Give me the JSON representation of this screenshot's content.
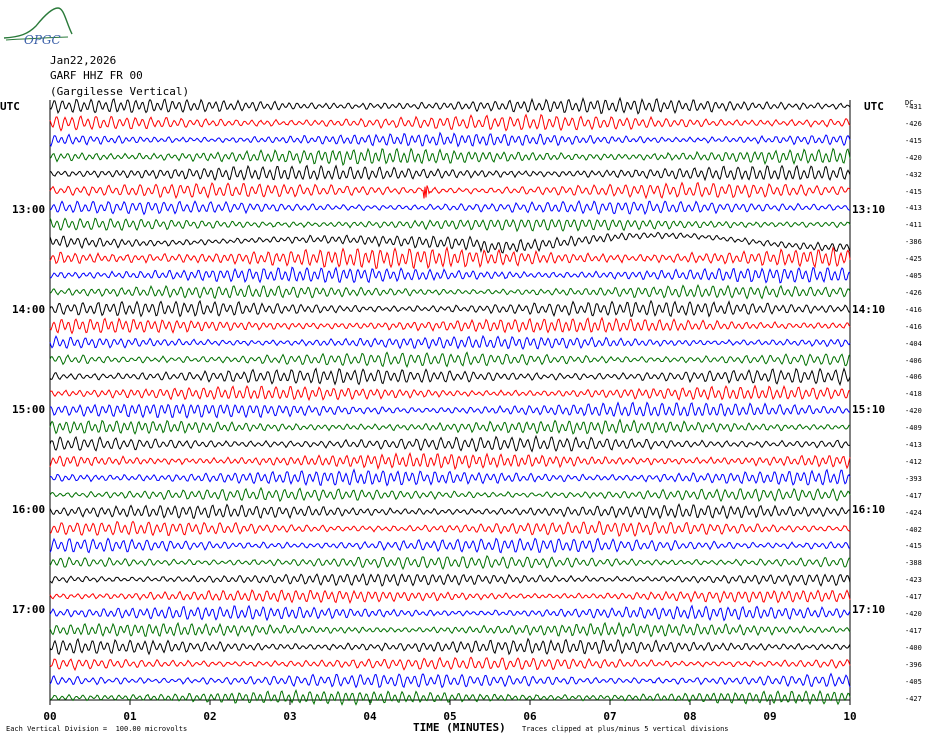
{
  "header": {
    "date": "Jan22,2026",
    "station": "GARF HHZ FR 00",
    "site": "(Gargilesse Vertical)",
    "logo_text": "OPGC"
  },
  "axes": {
    "utc_left": "UTC",
    "utc_right": "UTC",
    "dc_label": "DC"
  },
  "footer": {
    "division_note": "Each Vertical Division =  100.00 microvolts",
    "clip_note": "Traces clipped at plus/minus 5 vertical divisions"
  },
  "chart_data": {
    "type": "line",
    "title": "",
    "xlabel": "TIME (MINUTES)",
    "ylabel": "",
    "xlim": [
      0,
      10
    ],
    "x_ticks": [
      "00",
      "01",
      "02",
      "03",
      "04",
      "05",
      "06",
      "07",
      "08",
      "09",
      "10"
    ],
    "left_time_labels": [
      "13:00",
      "14:00",
      "15:00",
      "16:00",
      "17:00"
    ],
    "right_time_labels": [
      "13:10",
      "14:10",
      "15:10",
      "16:10",
      "17:10"
    ],
    "trace_colors": [
      "#000000",
      "#ff0000",
      "#0000ff",
      "#007000"
    ],
    "dc_offsets": [
      -431,
      -426,
      -415,
      -420,
      -432,
      -415,
      -413,
      -411,
      -386,
      -425,
      -405,
      -426,
      -416,
      -416,
      -404,
      -406,
      -406,
      -418,
      -420,
      -409,
      -413,
      -412,
      -393,
      -417,
      -424,
      -402,
      -415,
      -388,
      -423,
      -417,
      -420,
      -417,
      -400,
      -396,
      -405,
      -427
    ],
    "grid": false
  }
}
